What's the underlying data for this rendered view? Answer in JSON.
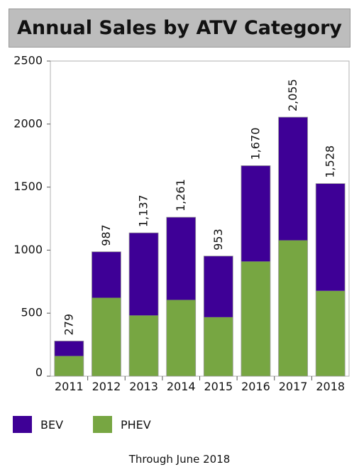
{
  "chart_data": {
    "type": "bar",
    "stacked": true,
    "title": "Annual Sales by ATV Category",
    "categories": [
      "2011",
      "2012",
      "2013",
      "2014",
      "2015",
      "2016",
      "2017",
      "2018"
    ],
    "series": [
      {
        "name": "PHEV",
        "color": "#77a642",
        "values": [
          160,
          622,
          482,
          605,
          468,
          910,
          1078,
          677
        ]
      },
      {
        "name": "BEV",
        "color": "#3e0096",
        "values": [
          119,
          365,
          655,
          656,
          485,
          760,
          977,
          851
        ]
      }
    ],
    "totals": [
      279,
      987,
      1137,
      1261,
      953,
      1670,
      2055,
      1528
    ],
    "total_labels": [
      "279",
      "987",
      "1,137",
      "1,261",
      "953",
      "1,670",
      "2,055",
      "1,528"
    ],
    "y_ticks": [
      "0",
      "500",
      "1000",
      "1500",
      "2000",
      "2500"
    ],
    "ylim": [
      0,
      2500
    ],
    "legend_position": "bottom-left",
    "footnote": "Through June 2018"
  },
  "legend": [
    {
      "label": "BEV",
      "color": "#3e0096"
    },
    {
      "label": "PHEV",
      "color": "#77a642"
    }
  ]
}
